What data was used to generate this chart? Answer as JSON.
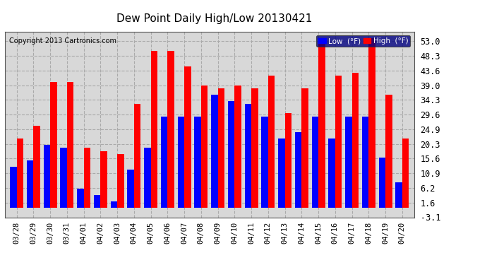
{
  "title": "Dew Point Daily High/Low 20130421",
  "copyright": "Copyright 2013 Cartronics.com",
  "dates": [
    "03/28",
    "03/29",
    "03/30",
    "03/31",
    "04/01",
    "04/02",
    "04/03",
    "04/04",
    "04/05",
    "04/06",
    "04/07",
    "04/08",
    "04/09",
    "04/10",
    "04/11",
    "04/12",
    "04/13",
    "04/14",
    "04/15",
    "04/16",
    "04/17",
    "04/18",
    "04/19",
    "04/20"
  ],
  "low_values": [
    13,
    15,
    20,
    19,
    6,
    4,
    2,
    12,
    19,
    29,
    29,
    29,
    36,
    34,
    33,
    29,
    22,
    24,
    29,
    22,
    29,
    29,
    16,
    8
  ],
  "high_values": [
    22,
    26,
    40,
    40,
    19,
    18,
    17,
    33,
    50,
    50,
    45,
    39,
    38,
    39,
    38,
    42,
    30,
    38,
    54,
    42,
    43,
    54,
    36,
    22
  ],
  "low_color": "#0000ff",
  "high_color": "#ff0000",
  "bg_color": "#ffffff",
  "plot_bg_color": "#d8d8d8",
  "yticks": [
    -3.1,
    1.6,
    6.2,
    10.9,
    15.6,
    20.3,
    24.9,
    29.6,
    34.3,
    39.0,
    43.6,
    48.3,
    53.0
  ],
  "ymin": -3.1,
  "ymax": 56.0,
  "grid_color": "#aaaaaa",
  "legend_low_label": "Low  (°F)",
  "legend_high_label": "High  (°F)"
}
